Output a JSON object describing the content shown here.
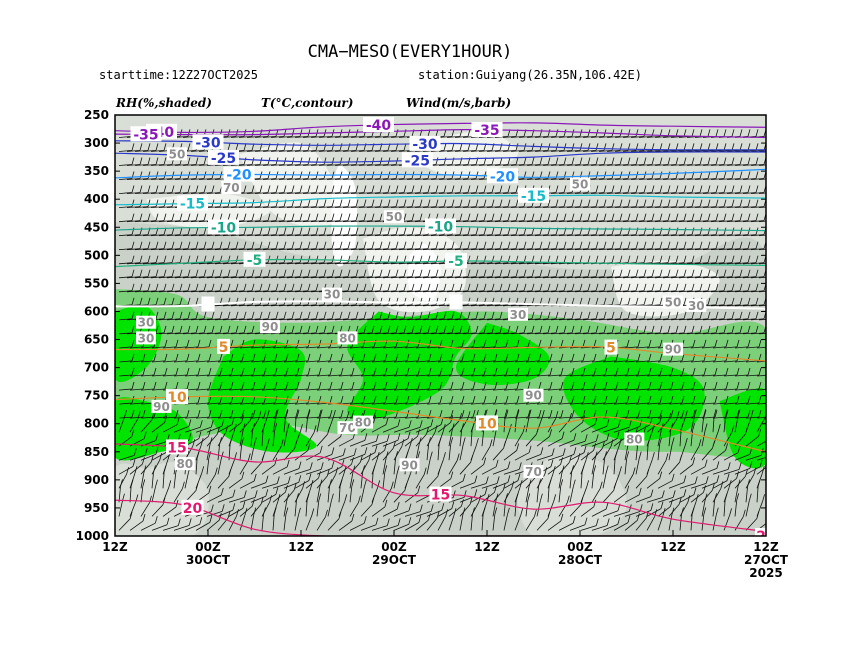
{
  "header": {
    "title": "CMA−MESO(EVERY1HOUR)",
    "starttime": "starttime:12Z27OCT2025",
    "station": "station:Guiyang(26.35N,106.42E)"
  },
  "legend": {
    "rh": "RH(%,shaded)",
    "temp": "T(°C,contour)",
    "wind": "Wind(m/s,barb)"
  },
  "colors": {
    "rh_lt30": "#ffffff",
    "rh_30_50": "#f0f3ee",
    "rh_50_70": "#d9dfd7",
    "rh_70_80": "#c9d1c8",
    "rh_80_90": "#7dd07a",
    "rh_gt90": "#00e400",
    "temp_neg40": "#8a18b8",
    "temp_neg35": "#8a18b8",
    "temp_neg30": "#2b39c8",
    "temp_neg25": "#2b39c8",
    "temp_neg20": "#1e90ff",
    "temp_neg15": "#18bcc8",
    "temp_neg10": "#1aa58a",
    "temp_neg5": "#20b080",
    "temp_0": "#ffffff",
    "temp_5": "#e08a2c",
    "temp_10": "#e08a2c",
    "temp_15": "#e01a6e",
    "temp_20": "#e01a6e"
  },
  "chart_data": {
    "type": "time-height cross section",
    "title": "CMA−MESO(EVERY1HOUR)",
    "y_axis": {
      "quantity": "pressure level",
      "reversed": true,
      "ylim": [
        1000,
        250
      ],
      "ticks": [
        250,
        300,
        350,
        400,
        450,
        500,
        550,
        600,
        650,
        700,
        750,
        800,
        850,
        900,
        950,
        1000
      ]
    },
    "x_axis": {
      "direction": "time decreases left to right",
      "range_hours": [
        84,
        0
      ],
      "ticks": [
        {
          "hour": 84,
          "label": [
            "12Z"
          ]
        },
        {
          "hour": 72,
          "label": [
            "00Z",
            "30OCT"
          ]
        },
        {
          "hour": 60,
          "label": [
            "12Z"
          ]
        },
        {
          "hour": 48,
          "label": [
            "00Z",
            "29OCT"
          ]
        },
        {
          "hour": 36,
          "label": [
            "12Z"
          ]
        },
        {
          "hour": 24,
          "label": [
            "00Z",
            "28OCT"
          ]
        },
        {
          "hour": 12,
          "label": [
            "12Z"
          ]
        },
        {
          "hour": 0,
          "label": [
            "12Z",
            "27OCT",
            "2025"
          ]
        }
      ]
    },
    "temperature_contours": [
      {
        "value": -40,
        "label": "-40",
        "p": [
          278,
          281,
          279,
          271,
          267,
          265,
          264,
          268,
          270,
          272
        ]
      },
      {
        "value": -35,
        "label": "-35",
        "p": [
          284,
          285,
          285,
          282,
          279,
          276,
          278,
          282,
          287,
          290
        ]
      },
      {
        "value": -30,
        "label": "-30",
        "p": [
          296,
          297,
          302,
          304,
          302,
          301,
          306,
          310,
          312,
          312
        ]
      },
      {
        "value": -25,
        "label": "-25",
        "p": [
          318,
          322,
          330,
          334,
          332,
          328,
          325,
          318,
          316,
          316
        ]
      },
      {
        "value": -20,
        "label": "-20",
        "p": [
          362,
          357,
          356,
          357,
          356,
          357,
          361,
          358,
          354,
          347
        ]
      },
      {
        "value": -15,
        "label": "-15",
        "p": [
          410,
          408,
          406,
          399,
          396,
          394,
          394,
          393,
          396,
          398
        ]
      },
      {
        "value": -10,
        "label": "-10",
        "p": [
          455,
          451,
          450,
          448,
          448,
          449,
          452,
          453,
          454,
          456
        ]
      },
      {
        "value": -5,
        "label": "-5",
        "p": [
          520,
          514,
          508,
          508,
          512,
          510,
          512,
          514,
          516,
          518
        ]
      },
      {
        "value": 0,
        "label": "0",
        "p": [
          591,
          590,
          583,
          582,
          584,
          584,
          587,
          590,
          592,
          595
        ]
      },
      {
        "value": 5,
        "label": "5",
        "p": [
          668,
          667,
          660,
          658,
          653,
          666,
          664,
          663,
          675,
          688
        ]
      },
      {
        "value": 10,
        "label": "10",
        "p": [
          757,
          752,
          752,
          762,
          778,
          795,
          808,
          788,
          810,
          850
        ]
      },
      {
        "value": 15,
        "label": "15",
        "p": [
          836,
          843,
          868,
          860,
          923,
          928,
          952,
          940,
          970,
          992
        ]
      },
      {
        "value": 20,
        "label": "20",
        "p": [
          936,
          945,
          988,
          1000,
          1000,
          1000,
          1000,
          1000,
          1000,
          1000
        ]
      }
    ],
    "rh_classes": [
      "<30",
      "30–50",
      "50–70",
      "70–80",
      "80–90",
      ">90"
    ],
    "rh_labels": [
      {
        "label": "30",
        "hour": 9,
        "p": 590
      },
      {
        "label": "30",
        "hour": 32,
        "p": 606
      },
      {
        "label": "30",
        "hour": 56,
        "p": 570
      },
      {
        "label": "30",
        "hour": 80,
        "p": 620
      },
      {
        "label": "30",
        "hour": 80,
        "p": 648
      },
      {
        "label": "50",
        "hour": 76,
        "p": 320
      },
      {
        "label": "50",
        "hour": 48,
        "p": 432
      },
      {
        "label": "50",
        "hour": 12,
        "p": 584
      },
      {
        "label": "50",
        "hour": 24,
        "p": 374
      },
      {
        "label": "70",
        "hour": 54,
        "p": 808
      },
      {
        "label": "70",
        "hour": 69,
        "p": 380
      },
      {
        "label": "70",
        "hour": 30,
        "p": 886
      },
      {
        "label": "80",
        "hour": 75,
        "p": 872
      },
      {
        "label": "80",
        "hour": 54,
        "p": 648
      },
      {
        "label": "80",
        "hour": 52,
        "p": 798
      },
      {
        "label": "80",
        "hour": 17,
        "p": 828
      },
      {
        "label": "90",
        "hour": 64,
        "p": 628
      },
      {
        "label": "90",
        "hour": 78,
        "p": 770
      },
      {
        "label": "90",
        "hour": 46,
        "p": 874
      },
      {
        "label": "90",
        "hour": 30,
        "p": 750
      },
      {
        "label": "90",
        "hour": 12,
        "p": 668
      }
    ],
    "wind_barbs": "northwesterly to westerly flow aloft (roughly 10–30 m/s), weaker and variable near the surface"
  }
}
